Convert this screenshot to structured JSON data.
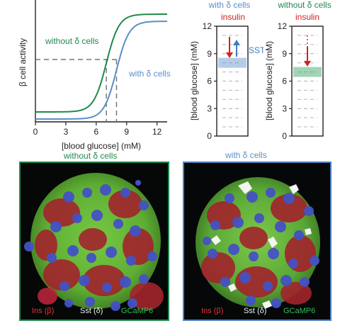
{
  "colors": {
    "without": "#1f8a4c",
    "with": "#5b8ec9",
    "insulin": "#d62020",
    "sst": "#3f7ec4",
    "ins_stain": "#e63434",
    "sst_stain": "#f2f2f2",
    "gcamp_stain": "#2fbf4f"
  },
  "curve_plot": {
    "type": "line",
    "ylabel": "β cell activity",
    "xlabel": "[blood glucose] (mM)",
    "x_ticks": [
      "0",
      "3",
      "6",
      "9",
      "12"
    ],
    "xlim": [
      0,
      13
    ],
    "curves": [
      {
        "name": "without δ cells",
        "midpoint_mM": 7.0
      },
      {
        "name": "with δ cells",
        "midpoint_mM": 8.0
      }
    ],
    "threshold_without_mM": 7.0,
    "threshold_with_mM": 8.0,
    "label_without": "without δ cells",
    "label_with": "with δ cells"
  },
  "bar_plots": [
    {
      "title": "with δ cells",
      "insulin_label": "insulin",
      "sst_label": "SST",
      "ylabel": "[blood glucose] (mM)",
      "y_ticks": [
        "0",
        "3",
        "6",
        "9",
        "12"
      ],
      "ylim": [
        0,
        12
      ],
      "setpoint_mM": 8.0
    },
    {
      "title": "without δ cells",
      "insulin_label": "insulin",
      "ylabel": "[blood glucose] (mM)",
      "y_ticks": [
        "0",
        "3",
        "6",
        "9",
        "12"
      ],
      "ylim": [
        0,
        12
      ],
      "setpoint_mM": 7.0
    }
  ],
  "micrographs": [
    {
      "title": "without δ cells",
      "stain_ins": "Ins (β)",
      "stain_sst": "Sst (δ)",
      "stain_gcamp": "GCaMP6"
    },
    {
      "title": "with δ cells",
      "stain_ins": "Ins (β)",
      "stain_sst": "Sst (δ)",
      "stain_gcamp": "GCaMP6"
    }
  ]
}
